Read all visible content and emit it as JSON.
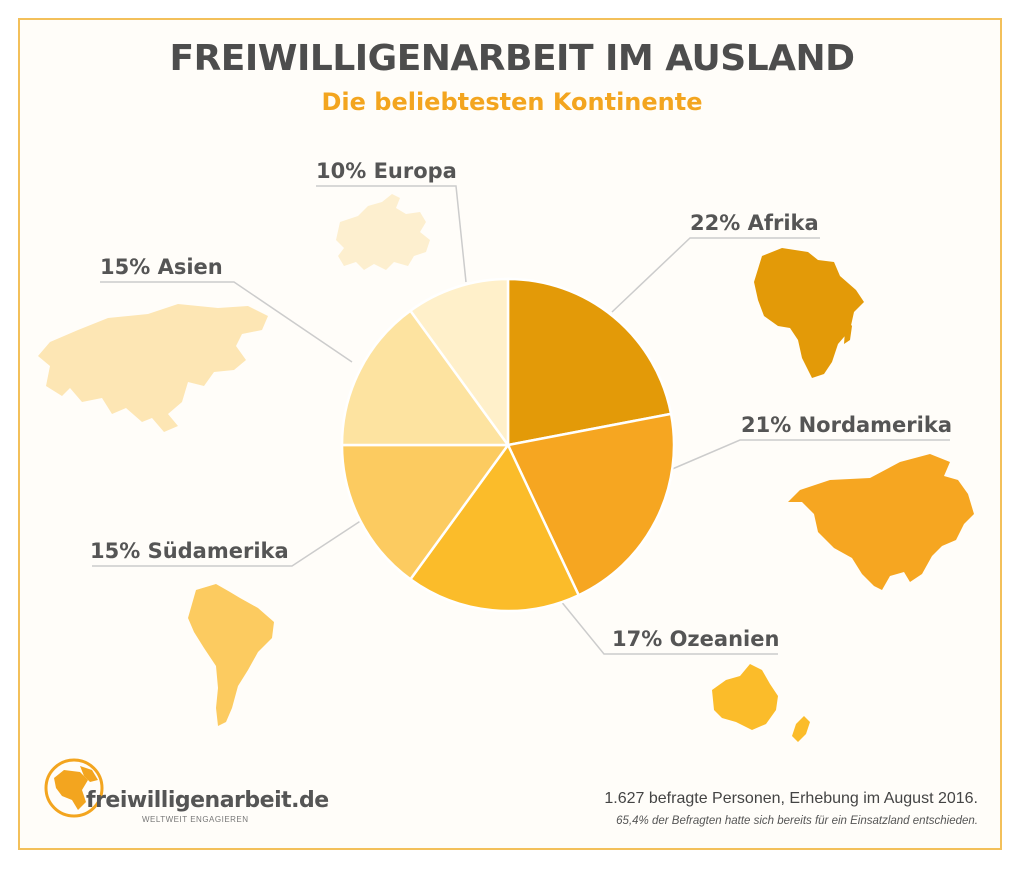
{
  "header": {
    "title": "FREIWILLIGENARBEIT IM AUSLAND",
    "subtitle": "Die beliebtesten Kontinente"
  },
  "chart_data": {
    "type": "pie",
    "title": "FREIWILLIGENARBEIT IM AUSLAND",
    "subtitle": "Die beliebtesten Kontinente",
    "unit": "%",
    "slices": [
      {
        "label": "Afrika",
        "value": 22,
        "text": "22% Afrika",
        "color": "#e39a08"
      },
      {
        "label": "Nordamerika",
        "value": 21,
        "text": "21% Nordamerika",
        "color": "#f6a621"
      },
      {
        "label": "Ozeanien",
        "value": 17,
        "text": "17% Ozeanien",
        "color": "#fbbc2a"
      },
      {
        "label": "Südamerika",
        "value": 15,
        "text": "15% Südamerika",
        "color": "#fccb60"
      },
      {
        "label": "Asien",
        "value": 15,
        "text": "15% Asien",
        "color": "#fde3a0"
      },
      {
        "label": "Europa",
        "value": 10,
        "text": "10% Europa",
        "color": "#fff0ca"
      }
    ]
  },
  "footer": {
    "note": "1.627 befragte Personen, Erhebung im August 2016.",
    "subnote": "65,4% der Befragten hatte sich bereits für ein Einsatzland entschieden."
  },
  "brand": {
    "name": "freiwilligenarbeit.de",
    "tagline": "WELTWEIT ENGAGIEREN"
  }
}
